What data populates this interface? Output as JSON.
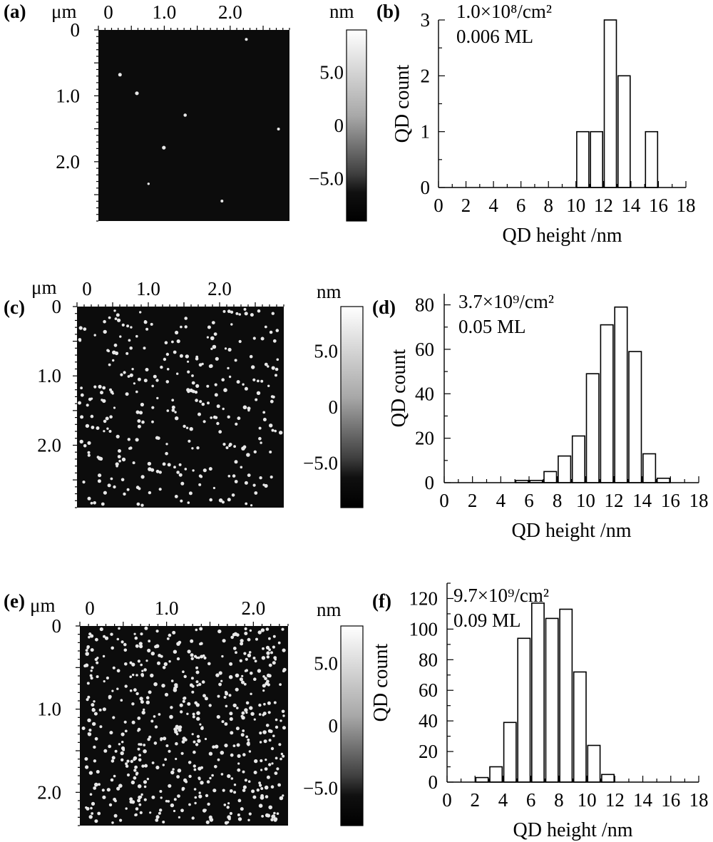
{
  "panels": [
    {
      "id": "a",
      "label": "(a)",
      "unit": "μm",
      "x_ticks": [
        "0",
        "1.0",
        "2.0"
      ],
      "y_ticks": [
        "0",
        "1.0",
        "2.0"
      ],
      "scan_size_um": 2.9,
      "x_tick_values": [
        0,
        1.0,
        2.0
      ],
      "y_tick_values": [
        0,
        1.0,
        2.0
      ],
      "colorbar": {
        "unit": "nm",
        "ticks": [
          "5.0",
          "0",
          "−5.0"
        ],
        "tick_values": [
          5,
          0,
          -5
        ],
        "range": [
          -9,
          9
        ]
      },
      "dot_count": 8,
      "seed": 11
    },
    {
      "id": "c",
      "label": "(c)",
      "unit": "μm",
      "x_ticks": [
        "0",
        "1.0",
        "2.0"
      ],
      "y_ticks": [
        "0",
        "1.0",
        "2.0"
      ],
      "scan_size_um": 2.9,
      "x_tick_values": [
        0,
        1.0,
        2.0
      ],
      "y_tick_values": [
        0,
        1.0,
        2.0
      ],
      "colorbar": {
        "unit": "nm",
        "ticks": [
          "5.0",
          "0",
          "−5.0"
        ],
        "tick_values": [
          5,
          0,
          -5
        ],
        "range": [
          -9,
          9
        ]
      },
      "dot_count": 310,
      "seed": 23
    },
    {
      "id": "e",
      "label": "(e)",
      "unit": "μm",
      "x_ticks": [
        "0",
        "1.0",
        "2.0"
      ],
      "y_ticks": [
        "0",
        "1.0",
        "2.0"
      ],
      "scan_size_um": 2.4,
      "x_tick_values": [
        0,
        1.0,
        2.0
      ],
      "y_tick_values": [
        0,
        1.0,
        2.0
      ],
      "colorbar": {
        "unit": "nm",
        "ticks": [
          "5.0",
          "0",
          "−5.0"
        ],
        "tick_values": [
          5,
          0,
          -5
        ],
        "range": [
          -8,
          8
        ]
      },
      "dot_count": 560,
      "seed": 37
    }
  ],
  "chart_data": [
    {
      "id": "b",
      "label": "(b)",
      "type": "bar",
      "annotation": [
        "1.0×10⁸/cm²",
        "0.006 ML"
      ],
      "xlabel": "QD height /nm",
      "ylabel": "QD count",
      "xlim": [
        0,
        18
      ],
      "ylim": [
        0,
        3
      ],
      "x_ticks": [
        0,
        2,
        4,
        6,
        8,
        10,
        12,
        14,
        16,
        18
      ],
      "y_ticks": [
        0,
        1,
        2,
        3
      ],
      "bin_width": 1,
      "bins": [
        10.5,
        11.5,
        12.5,
        13.5,
        15.5
      ],
      "values": [
        1,
        1,
        3,
        2,
        1
      ]
    },
    {
      "id": "d",
      "label": "(d)",
      "type": "bar",
      "annotation": [
        "3.7×10⁹/cm²",
        "0.05 ML"
      ],
      "xlabel": "QD height /nm",
      "ylabel": "QD count",
      "xlim": [
        0,
        18
      ],
      "ylim": [
        0,
        85
      ],
      "x_ticks": [
        0,
        2,
        4,
        6,
        8,
        10,
        12,
        14,
        16,
        18
      ],
      "y_ticks": [
        0,
        20,
        40,
        60,
        80
      ],
      "bin_width": 1,
      "bins": [
        5.5,
        6.5,
        7.5,
        8.5,
        9.5,
        10.5,
        11.5,
        12.5,
        13.5,
        14.5,
        15.5
      ],
      "values": [
        1,
        1,
        5,
        12,
        21,
        49,
        71,
        79,
        59,
        13,
        2
      ]
    },
    {
      "id": "f",
      "label": "(f)",
      "type": "bar",
      "annotation": [
        "9.7×10⁹/cm²",
        "0.09 ML"
      ],
      "xlabel": "QD height /nm",
      "ylabel": "QD count",
      "xlim": [
        0,
        18
      ],
      "ylim": [
        0,
        130
      ],
      "x_ticks": [
        0,
        2,
        4,
        6,
        8,
        10,
        12,
        14,
        16,
        18
      ],
      "y_ticks": [
        0,
        20,
        40,
        60,
        80,
        100,
        120
      ],
      "bin_width": 1,
      "bins": [
        2.5,
        3.5,
        4.5,
        5.5,
        6.5,
        7.5,
        8.5,
        9.5,
        10.5,
        11.5
      ],
      "values": [
        3,
        10,
        39,
        94,
        117,
        107,
        113,
        72,
        24,
        5
      ]
    }
  ]
}
